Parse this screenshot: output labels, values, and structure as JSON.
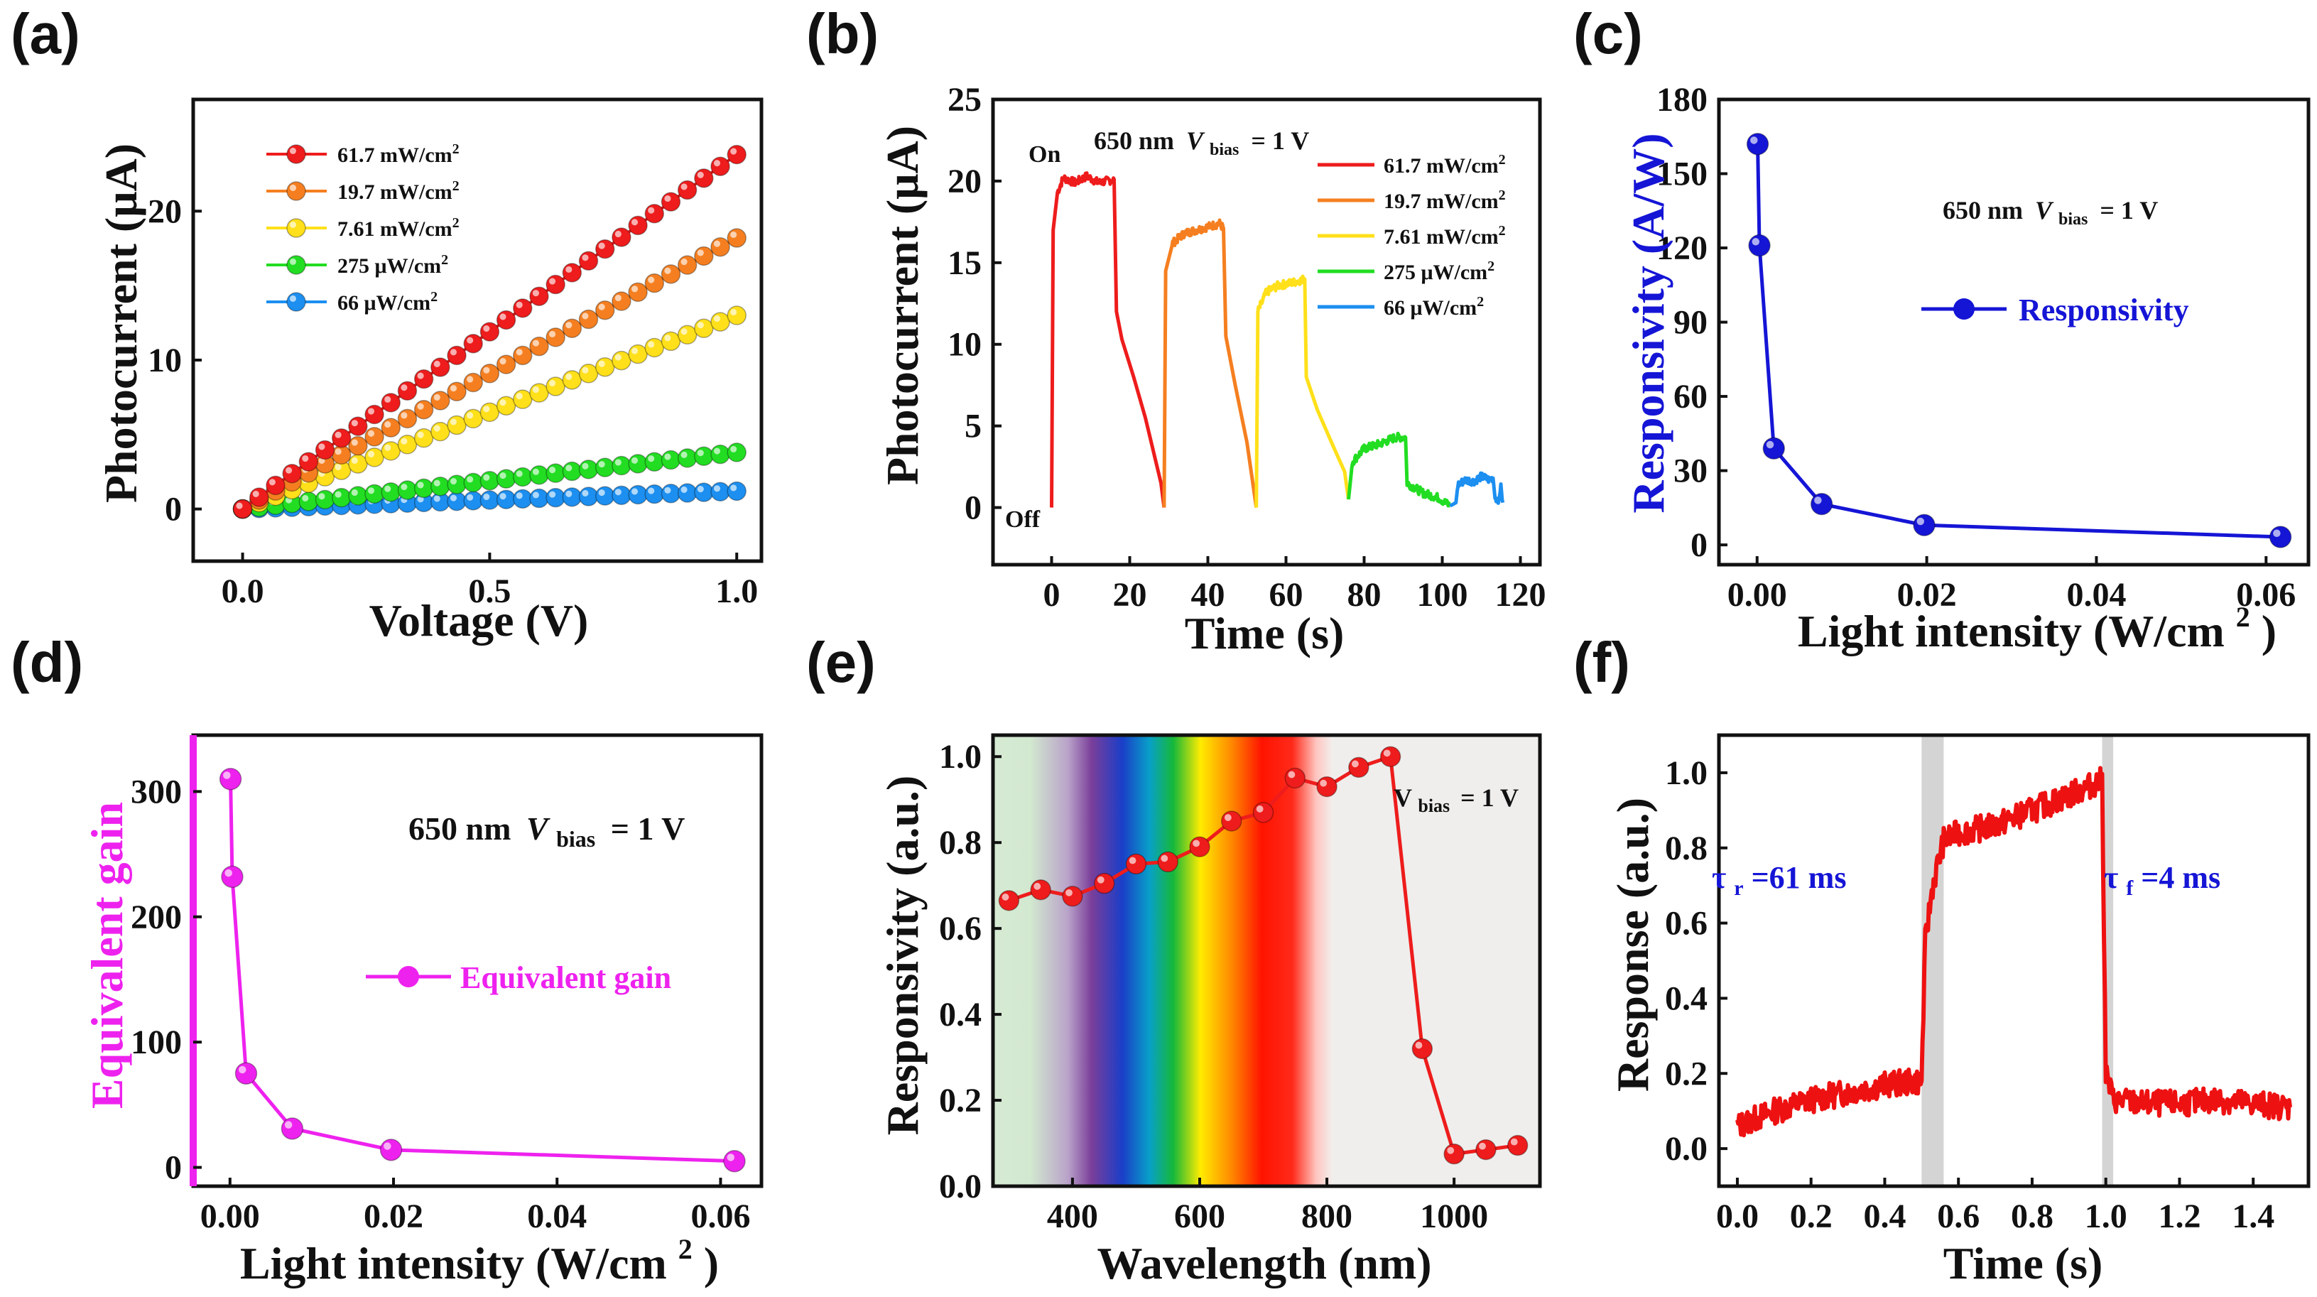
{
  "figure": {
    "panels": [
      "(a)",
      "(b)",
      "(c)",
      "(d)",
      "(e)",
      "(f)"
    ]
  },
  "chart_data": [
    {
      "panel": "(a)",
      "type": "scatter",
      "xlabel": "Voltage (V)",
      "ylabel": "Photocurrent (μA)",
      "xlim": [
        -0.1,
        1.05
      ],
      "ylim": [
        -3.5,
        27.5
      ],
      "xticks": [
        0.0,
        0.5,
        1.0
      ],
      "xtick_labels": [
        "0.0",
        "0.5",
        "1.0"
      ],
      "yticks": [
        0,
        10,
        20
      ],
      "ytick_labels": [
        "0",
        "10",
        "20"
      ],
      "x_points": 31,
      "series": [
        {
          "name": "61.7 mW/cm",
          "sup": "2",
          "color": "#ee1c1c",
          "slope": 23.8,
          "exponent": 1.0
        },
        {
          "name": "19.7 mW/cm",
          "sup": "2",
          "color": "#f57f20",
          "slope": 18.2,
          "exponent": 1.0
        },
        {
          "name": "7.61 mW/cm",
          "sup": "2",
          "color": "#ffe01a",
          "slope": 13.0,
          "exponent": 1.0
        },
        {
          "name": "275 μW/cm",
          "sup": "2",
          "color": "#22dd22",
          "slope": 3.8,
          "exponent": 1.0
        },
        {
          "name": "66 μW/cm",
          "sup": "2",
          "color": "#1c8ff0",
          "slope": 1.2,
          "exponent": 1.0
        }
      ]
    },
    {
      "panel": "(b)",
      "type": "line",
      "xlabel": "Time (s)",
      "ylabel": "Photocurrent (μA)",
      "xlim": [
        -15,
        125
      ],
      "ylim": [
        -3.5,
        25
      ],
      "xticks": [
        0,
        20,
        40,
        60,
        80,
        100,
        120
      ],
      "xtick_labels": [
        "0",
        "20",
        "40",
        "60",
        "80",
        "100",
        "120"
      ],
      "yticks": [
        0,
        5,
        10,
        15,
        20,
        25
      ],
      "ytick_labels": [
        "0",
        "5",
        "10",
        "15",
        "20",
        "25"
      ],
      "annotations": {
        "on": "On",
        "off": "Off",
        "condition_prefix": "650 nm",
        "v": "V",
        "sub": "bias",
        "condition_suffix": "= 1 V"
      },
      "series": [
        {
          "name": "61.7 mW/cm",
          "sup": "2",
          "color": "#ee1c1c",
          "points": [
            [
              0,
              0
            ],
            [
              0.4,
              17
            ],
            [
              1.5,
              19.3
            ],
            [
              3,
              20.2
            ],
            [
              6,
              19.9
            ],
            [
              9,
              20.3
            ],
            [
              12,
              19.9
            ],
            [
              16,
              20.1
            ],
            [
              16.6,
              12
            ],
            [
              18,
              10.3
            ],
            [
              21,
              8
            ],
            [
              24,
              5.5
            ],
            [
              26,
              3.5
            ],
            [
              28,
              1.5
            ],
            [
              28.8,
              0
            ]
          ]
        },
        {
          "name": "19.7 mW/cm",
          "sup": "2",
          "color": "#f57f20",
          "points": [
            [
              28.8,
              0
            ],
            [
              29.2,
              14.5
            ],
            [
              31,
              16.2
            ],
            [
              34,
              16.8
            ],
            [
              37,
              17
            ],
            [
              40,
              17.2
            ],
            [
              43,
              17.4
            ],
            [
              44,
              17.1
            ],
            [
              44.6,
              10.5
            ],
            [
              47,
              7.5
            ],
            [
              50,
              4
            ],
            [
              52.4,
              0
            ]
          ]
        },
        {
          "name": "7.61 mW/cm",
          "sup": "2",
          "color": "#ffe01a",
          "points": [
            [
              52.4,
              0
            ],
            [
              52.8,
              12
            ],
            [
              55,
              13.2
            ],
            [
              58,
              13.6
            ],
            [
              62,
              13.8
            ],
            [
              64.8,
              14
            ],
            [
              65.2,
              8
            ],
            [
              68,
              6
            ],
            [
              72,
              3.8
            ],
            [
              75,
              2.2
            ],
            [
              76,
              0.5
            ]
          ]
        },
        {
          "name": "275 μW/cm",
          "sup": "2",
          "color": "#22dd22",
          "points": [
            [
              76,
              0.5
            ],
            [
              77,
              2.8
            ],
            [
              80,
              3.6
            ],
            [
              84,
              3.9
            ],
            [
              88,
              4.3
            ],
            [
              90.6,
              4.3
            ],
            [
              91,
              1.5
            ],
            [
              95,
              0.9
            ],
            [
              99,
              0.6
            ],
            [
              102,
              0.1
            ]
          ]
        },
        {
          "name": "66 μW/cm",
          "sup": "2",
          "color": "#1c8ff0",
          "points": [
            [
              102,
              0.1
            ],
            [
              103.5,
              0.3
            ],
            [
              104,
              1.4
            ],
            [
              106,
              1.7
            ],
            [
              108,
              1.6
            ],
            [
              110,
              1.9
            ],
            [
              112,
              1.7
            ],
            [
              113,
              1.8
            ],
            [
              113.5,
              0.6
            ],
            [
              114.5,
              0.5
            ],
            [
              115,
              1.2
            ],
            [
              115.5,
              0.3
            ]
          ]
        }
      ]
    },
    {
      "panel": "(c)",
      "type": "line",
      "xlabel": "Light intensity (W/cm",
      "xlabel_sup": "2",
      "xlabel_close": ")",
      "ylabel": "Responsivity (A/W)",
      "xlim": [
        -0.0045,
        0.065
      ],
      "ylim": [
        -8,
        180
      ],
      "xticks": [
        0.0,
        0.02,
        0.04,
        0.06
      ],
      "xtick_labels": [
        "0.00",
        "0.02",
        "0.04",
        "0.06"
      ],
      "yticks": [
        0,
        30,
        60,
        90,
        120,
        150,
        180
      ],
      "ytick_labels": [
        "0",
        "30",
        "60",
        "90",
        "120",
        "150",
        "180"
      ],
      "annotations": {
        "condition_prefix": "650 nm",
        "v": "V",
        "sub": "bias",
        "condition_suffix": "= 1 V"
      },
      "series": [
        {
          "name": "Responsivity",
          "color": "#1515d6",
          "x": [
            6.6e-05,
            0.000275,
            0.00197,
            0.00761,
            0.0197,
            0.0617
          ],
          "values": [
            162,
            121,
            39,
            16.5,
            8,
            3.2
          ]
        }
      ]
    },
    {
      "panel": "(d)",
      "type": "line",
      "xlabel": "Light intensity (W/cm",
      "xlabel_sup": "2",
      "xlabel_close": ")",
      "ylabel": "Equivalent gain",
      "xlim": [
        -0.0045,
        0.065
      ],
      "ylim": [
        -15,
        345
      ],
      "xticks": [
        0.0,
        0.02,
        0.04,
        0.06
      ],
      "xtick_labels": [
        "0.00",
        "0.02",
        "0.04",
        "0.06"
      ],
      "yticks": [
        0,
        100,
        200,
        300
      ],
      "ytick_labels": [
        "0",
        "100",
        "200",
        "300"
      ],
      "annotations": {
        "condition_prefix": "650 nm",
        "v": "V",
        "sub": "bias",
        "condition_suffix": "= 1 V"
      },
      "series": [
        {
          "name": "Equivalent gain",
          "color": "#ee22ee",
          "x": [
            6.6e-05,
            0.000275,
            0.00197,
            0.00761,
            0.0197,
            0.0617
          ],
          "values": [
            310,
            232,
            75,
            31,
            14,
            5
          ]
        }
      ]
    },
    {
      "panel": "(e)",
      "type": "line",
      "xlabel": "Wavelength (nm)",
      "ylabel": "Responsivity (a.u.)",
      "xlim": [
        275,
        1135
      ],
      "ylim": [
        0,
        1.05
      ],
      "xticks": [
        400,
        600,
        800,
        1000
      ],
      "xtick_labels": [
        "400",
        "600",
        "800",
        "1000"
      ],
      "yticks": [
        0,
        0.2,
        0.4,
        0.6,
        0.8,
        1.0
      ],
      "ytick_labels": [
        "0.0",
        "0.2",
        "0.4",
        "0.6",
        "0.8",
        "1.0"
      ],
      "annotations": {
        "v": "V",
        "sub": "bias",
        "condition_suffix": "= 1 V"
      },
      "series": [
        {
          "name": "Responsivity",
          "color": "#ee1c1c",
          "x": [
            300,
            350,
            400,
            450,
            500,
            550,
            600,
            650,
            700,
            750,
            800,
            850,
            900,
            950,
            1000,
            1050,
            1100
          ],
          "values": [
            0.665,
            0.69,
            0.675,
            0.705,
            0.75,
            0.755,
            0.79,
            0.85,
            0.87,
            0.95,
            0.93,
            0.975,
            1.0,
            0.32,
            0.075,
            0.085,
            0.095
          ]
        }
      ]
    },
    {
      "panel": "(f)",
      "type": "line",
      "xlabel": "Time (s)",
      "ylabel": "Response (a.u.)",
      "xlim": [
        -0.05,
        1.55
      ],
      "ylim": [
        -0.1,
        1.1
      ],
      "xticks": [
        0.0,
        0.2,
        0.4,
        0.6,
        0.8,
        1.0,
        1.2,
        1.4
      ],
      "xtick_labels": [
        "0.0",
        "0.2",
        "0.4",
        "0.6",
        "0.8",
        "1.0",
        "1.2",
        "1.4"
      ],
      "yticks": [
        0,
        0.2,
        0.4,
        0.6,
        0.8,
        1.0
      ],
      "ytick_labels": [
        "0.0",
        "0.2",
        "0.4",
        "0.6",
        "0.8",
        "1.0"
      ],
      "annotations": {
        "rise_prefix": "τ",
        "rise_sub": "r",
        "rise_suffix": "=61 ms",
        "fall_prefix": "τ",
        "fall_sub": "f",
        "fall_suffix": "=4 ms"
      },
      "highlight_bands": [
        [
          0.5,
          0.56
        ],
        [
          0.99,
          1.02
        ]
      ],
      "series": [
        {
          "name": "Response",
          "color": "#ee1111",
          "points": [
            [
              0,
              0.06
            ],
            [
              0.1,
              0.1
            ],
            [
              0.2,
              0.13
            ],
            [
              0.3,
              0.15
            ],
            [
              0.4,
              0.17
            ],
            [
              0.5,
              0.18
            ],
            [
              0.51,
              0.55
            ],
            [
              0.53,
              0.7
            ],
            [
              0.56,
              0.82
            ],
            [
              0.6,
              0.84
            ],
            [
              0.7,
              0.86
            ],
            [
              0.8,
              0.9
            ],
            [
              0.9,
              0.94
            ],
            [
              0.99,
              0.98
            ],
            [
              1.0,
              0.2
            ],
            [
              1.02,
              0.13
            ],
            [
              1.1,
              0.12
            ],
            [
              1.2,
              0.12
            ],
            [
              1.3,
              0.13
            ],
            [
              1.4,
              0.12
            ],
            [
              1.5,
              0.11
            ]
          ]
        }
      ]
    }
  ]
}
